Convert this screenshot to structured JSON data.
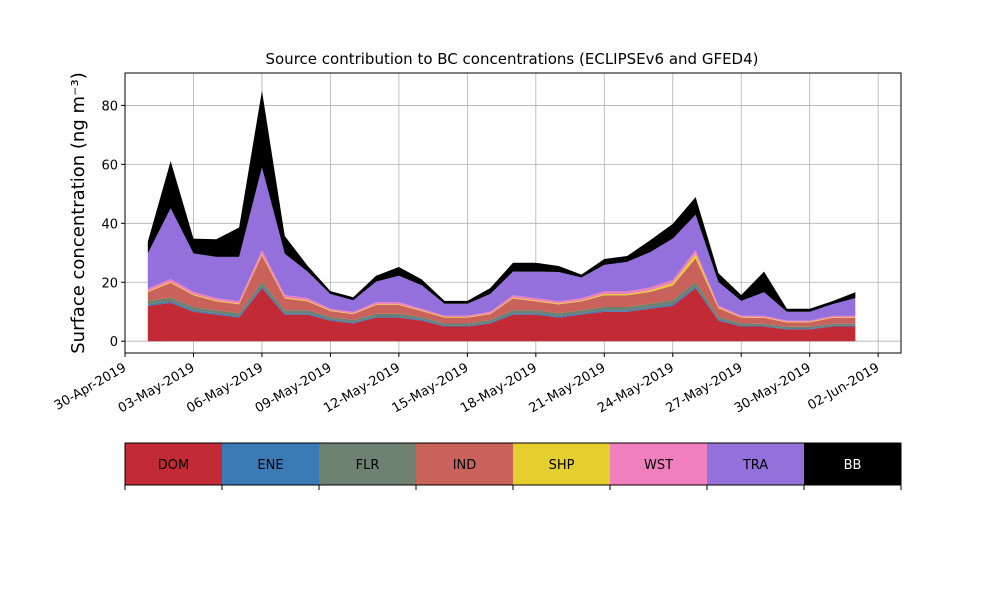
{
  "chart_data": {
    "type": "area",
    "stacked": true,
    "title": "Source contribution to BC concentrations (ECLIPSEv6 and GFED4)",
    "ylabel": "Surface concentration (ng m⁻³)",
    "xlabel": "",
    "xlim": [
      "2019-04-30",
      "2019-06-03"
    ],
    "ylim": [
      -4,
      91
    ],
    "grid": true,
    "x_ticks": [
      "30-Apr-2019",
      "03-May-2019",
      "06-May-2019",
      "09-May-2019",
      "12-May-2019",
      "15-May-2019",
      "18-May-2019",
      "21-May-2019",
      "24-May-2019",
      "27-May-2019",
      "30-May-2019",
      "02-Jun-2019"
    ],
    "y_ticks": [
      "0",
      "20",
      "40",
      "60",
      "80"
    ],
    "legend_position": "bottom",
    "x": [
      "2019-05-01",
      "2019-05-02",
      "2019-05-03",
      "2019-05-04",
      "2019-05-05",
      "2019-05-06",
      "2019-05-07",
      "2019-05-08",
      "2019-05-09",
      "2019-05-10",
      "2019-05-11",
      "2019-05-12",
      "2019-05-13",
      "2019-05-14",
      "2019-05-15",
      "2019-05-16",
      "2019-05-17",
      "2019-05-18",
      "2019-05-19",
      "2019-05-20",
      "2019-05-21",
      "2019-05-22",
      "2019-05-23",
      "2019-05-24",
      "2019-05-25",
      "2019-05-26",
      "2019-05-27",
      "2019-05-28",
      "2019-05-29",
      "2019-05-30",
      "2019-05-31",
      "2019-06-01"
    ],
    "series": [
      {
        "name": "DOM",
        "color": "#c22a35",
        "values": [
          12,
          13,
          10,
          9,
          8,
          18,
          9,
          9,
          7,
          6,
          8,
          8,
          7,
          5,
          5,
          6,
          9,
          9,
          8,
          9,
          10,
          10,
          11,
          12,
          18,
          7,
          5,
          5,
          4,
          4,
          5,
          5
        ]
      },
      {
        "name": "ENE",
        "color": "#3a7bb5",
        "values": [
          0.5,
          0.5,
          0.5,
          0.5,
          0.5,
          0.6,
          0.5,
          0.5,
          0.4,
          0.4,
          0.4,
          0.4,
          0.4,
          0.3,
          0.3,
          0.4,
          0.5,
          0.5,
          0.5,
          0.5,
          0.5,
          0.5,
          0.5,
          0.6,
          0.6,
          0.4,
          0.3,
          0.3,
          0.3,
          0.3,
          0.3,
          0.3
        ]
      },
      {
        "name": "FLR",
        "color": "#6e8070",
        "values": [
          1.2,
          1.3,
          1.1,
          1.0,
          1.0,
          1.5,
          1.0,
          1.0,
          0.8,
          0.8,
          0.9,
          0.9,
          0.8,
          0.7,
          0.7,
          0.8,
          1.0,
          1.0,
          1.0,
          1.0,
          1.1,
          1.1,
          1.2,
          1.3,
          1.5,
          0.8,
          0.7,
          0.6,
          0.6,
          0.6,
          0.6,
          0.6
        ]
      },
      {
        "name": "IND",
        "color": "#c8625a",
        "values": [
          3,
          5,
          4,
          3,
          3,
          9,
          4,
          3,
          2,
          2,
          3,
          3,
          2,
          2,
          2,
          2,
          4,
          3,
          3,
          3,
          4,
          4,
          4,
          5,
          8,
          3,
          2,
          2,
          1.5,
          1.5,
          2,
          2
        ]
      },
      {
        "name": "SHP",
        "color": "#e5cf2e",
        "values": [
          0.3,
          0.3,
          0.3,
          0.3,
          0.3,
          0.4,
          0.3,
          0.3,
          0.2,
          0.2,
          0.2,
          0.2,
          0.2,
          0.2,
          0.2,
          0.2,
          0.3,
          0.3,
          0.3,
          0.3,
          0.4,
          0.4,
          0.5,
          0.8,
          1.5,
          0.3,
          0.2,
          0.2,
          0.2,
          0.2,
          0.2,
          0.2
        ]
      },
      {
        "name": "WST",
        "color": "#f07fbd",
        "values": [
          0.8,
          1.0,
          0.9,
          0.8,
          0.8,
          1.5,
          0.9,
          0.8,
          0.6,
          0.5,
          0.7,
          0.7,
          0.6,
          0.5,
          0.5,
          0.6,
          0.8,
          0.8,
          0.7,
          0.8,
          0.9,
          0.9,
          1.0,
          1.1,
          1.3,
          0.6,
          0.5,
          0.5,
          0.4,
          0.4,
          0.5,
          0.5
        ]
      },
      {
        "name": "TRA",
        "color": "#9370db",
        "values": [
          12,
          24,
          13,
          14,
          15,
          28,
          14,
          9,
          5,
          4,
          7,
          9,
          8,
          4,
          4,
          6,
          8,
          9,
          10,
          7,
          9,
          10,
          12,
          14,
          12,
          8,
          5,
          8,
          3,
          3,
          4,
          6
        ]
      },
      {
        "name": "BB",
        "color": "#000000",
        "values": [
          4,
          16,
          5,
          6,
          10,
          26,
          6,
          2,
          1,
          1,
          2,
          3,
          2,
          1,
          1,
          2,
          3,
          3,
          2,
          1,
          2,
          2,
          4,
          5,
          6,
          3,
          2,
          7,
          1,
          1,
          1,
          2
        ]
      }
    ]
  }
}
